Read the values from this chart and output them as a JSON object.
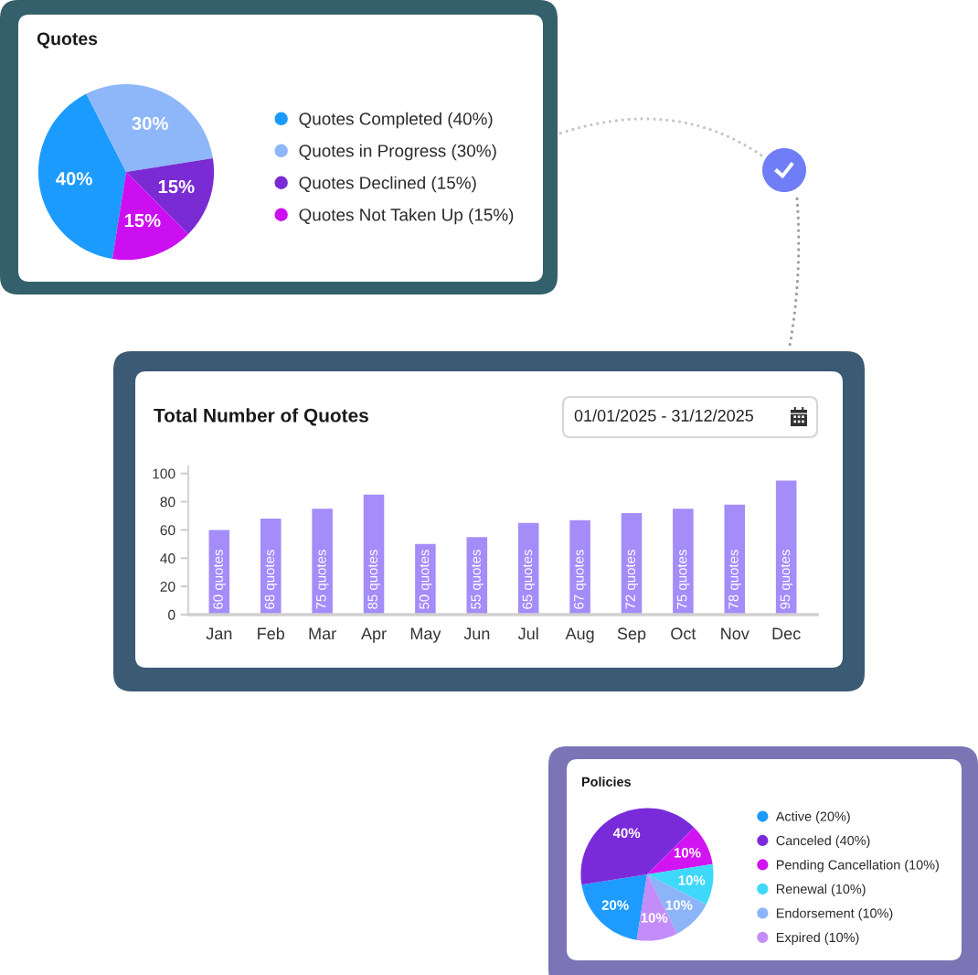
{
  "chart_data": [
    {
      "type": "pie",
      "title": "Quotes",
      "categories": [
        "Quotes Completed (40%)",
        "Quotes in Progress (30%)",
        "Quotes Declined (15%)",
        "Quotes Not Taken Up (15%)"
      ],
      "values": [
        40,
        30,
        15,
        15
      ],
      "colors": [
        "#1c9bff",
        "#8db7f9",
        "#7a2bd4",
        "#cc0ff0"
      ],
      "value_labels": [
        "40%",
        "30%",
        "15%",
        "15%"
      ],
      "legend": "right"
    },
    {
      "type": "bar",
      "title": "Total Number of Quotes",
      "categories": [
        "Jan",
        "Feb",
        "Mar",
        "Apr",
        "May",
        "Jun",
        "Jul",
        "Aug",
        "Sep",
        "Oct",
        "Nov",
        "Dec"
      ],
      "values": [
        60,
        68,
        75,
        85,
        50,
        55,
        65,
        67,
        72,
        75,
        78,
        95
      ],
      "color": "#a48cf9",
      "value_labels": [
        "60 quotes",
        "68 quotes",
        "75 quotes",
        "85 quotes",
        "50 quotes",
        "55 quotes",
        "65 quotes",
        "67 quotes",
        "72 quotes",
        "75 quotes",
        "78 quotes",
        "95 quotes"
      ],
      "ylim": [
        0,
        105
      ],
      "yticks": [
        0,
        20,
        40,
        60,
        80,
        100
      ],
      "annotations": [
        "01/01/2025 - 31/12/2025"
      ]
    },
    {
      "type": "pie",
      "title": "Policies",
      "categories": [
        "Active (20%)",
        "Canceled (40%)",
        "Pending Cancellation (10%)",
        "Renewal (10%)",
        "Endorsement (10%)",
        "Expired (10%)"
      ],
      "values": [
        20,
        40,
        10,
        10,
        10,
        10
      ],
      "colors": [
        "#1e9bff",
        "#7a2bd9",
        "#d214f2",
        "#3ed8fa",
        "#8cb4f8",
        "#c38cf8"
      ],
      "value_labels": [
        "20%",
        "40%",
        "10%",
        "10%",
        "10%",
        "10%"
      ],
      "legend": "right"
    }
  ]
}
